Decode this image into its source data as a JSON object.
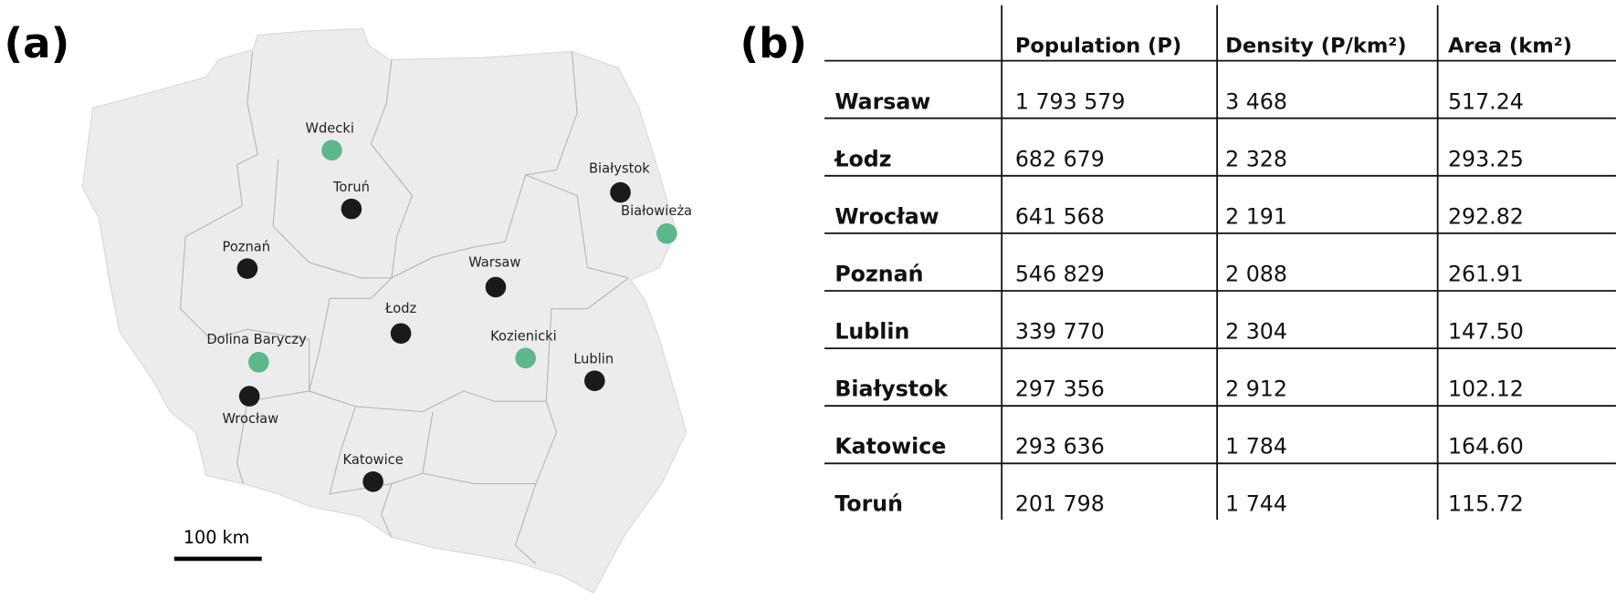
{
  "panels": {
    "a": "(a)",
    "b": "(b)"
  },
  "map": {
    "places": [
      {
        "name": "Wdecki",
        "color": "#5cb88a"
      },
      {
        "name": "Toruń",
        "color": "#1a1a1a"
      },
      {
        "name": "Poznań",
        "color": "#1a1a1a"
      },
      {
        "name": "Białystok",
        "color": "#1a1a1a"
      },
      {
        "name": "Białowieża",
        "color": "#5cb88a"
      },
      {
        "name": "Warsaw",
        "color": "#1a1a1a"
      },
      {
        "name": "Łodz",
        "color": "#1a1a1a"
      },
      {
        "name": "Kozienicki",
        "color": "#5cb88a"
      },
      {
        "name": "Lublin",
        "color": "#1a1a1a"
      },
      {
        "name": "Dolina Baryczy",
        "color": "#5cb88a"
      },
      {
        "name": "Wrocław",
        "color": "#1a1a1a"
      },
      {
        "name": "Katowice",
        "color": "#1a1a1a"
      }
    ],
    "scale_bar": "100 km"
  },
  "table": {
    "header": [
      "Population (P)",
      "Density (P/km²)",
      "Area (km²)"
    ],
    "rows": [
      [
        "Warsaw",
        "1 793 579",
        "3 468",
        "517.24"
      ],
      [
        "Łodz",
        "682 679",
        "2 328",
        "293.25"
      ],
      [
        "Wrocław",
        "641 568",
        "2 191",
        "292.82"
      ],
      [
        "Poznań",
        "546 829",
        "2 088",
        "261.91"
      ],
      [
        "Lublin",
        "339 770",
        "2 304",
        "147.50"
      ],
      [
        "Białystok",
        "297 356",
        "2 912",
        "102.12"
      ],
      [
        "Katowice",
        "293 636",
        "1 784",
        "164.60"
      ],
      [
        "Toruń",
        "201 798",
        "1 744",
        "115.72"
      ]
    ]
  }
}
